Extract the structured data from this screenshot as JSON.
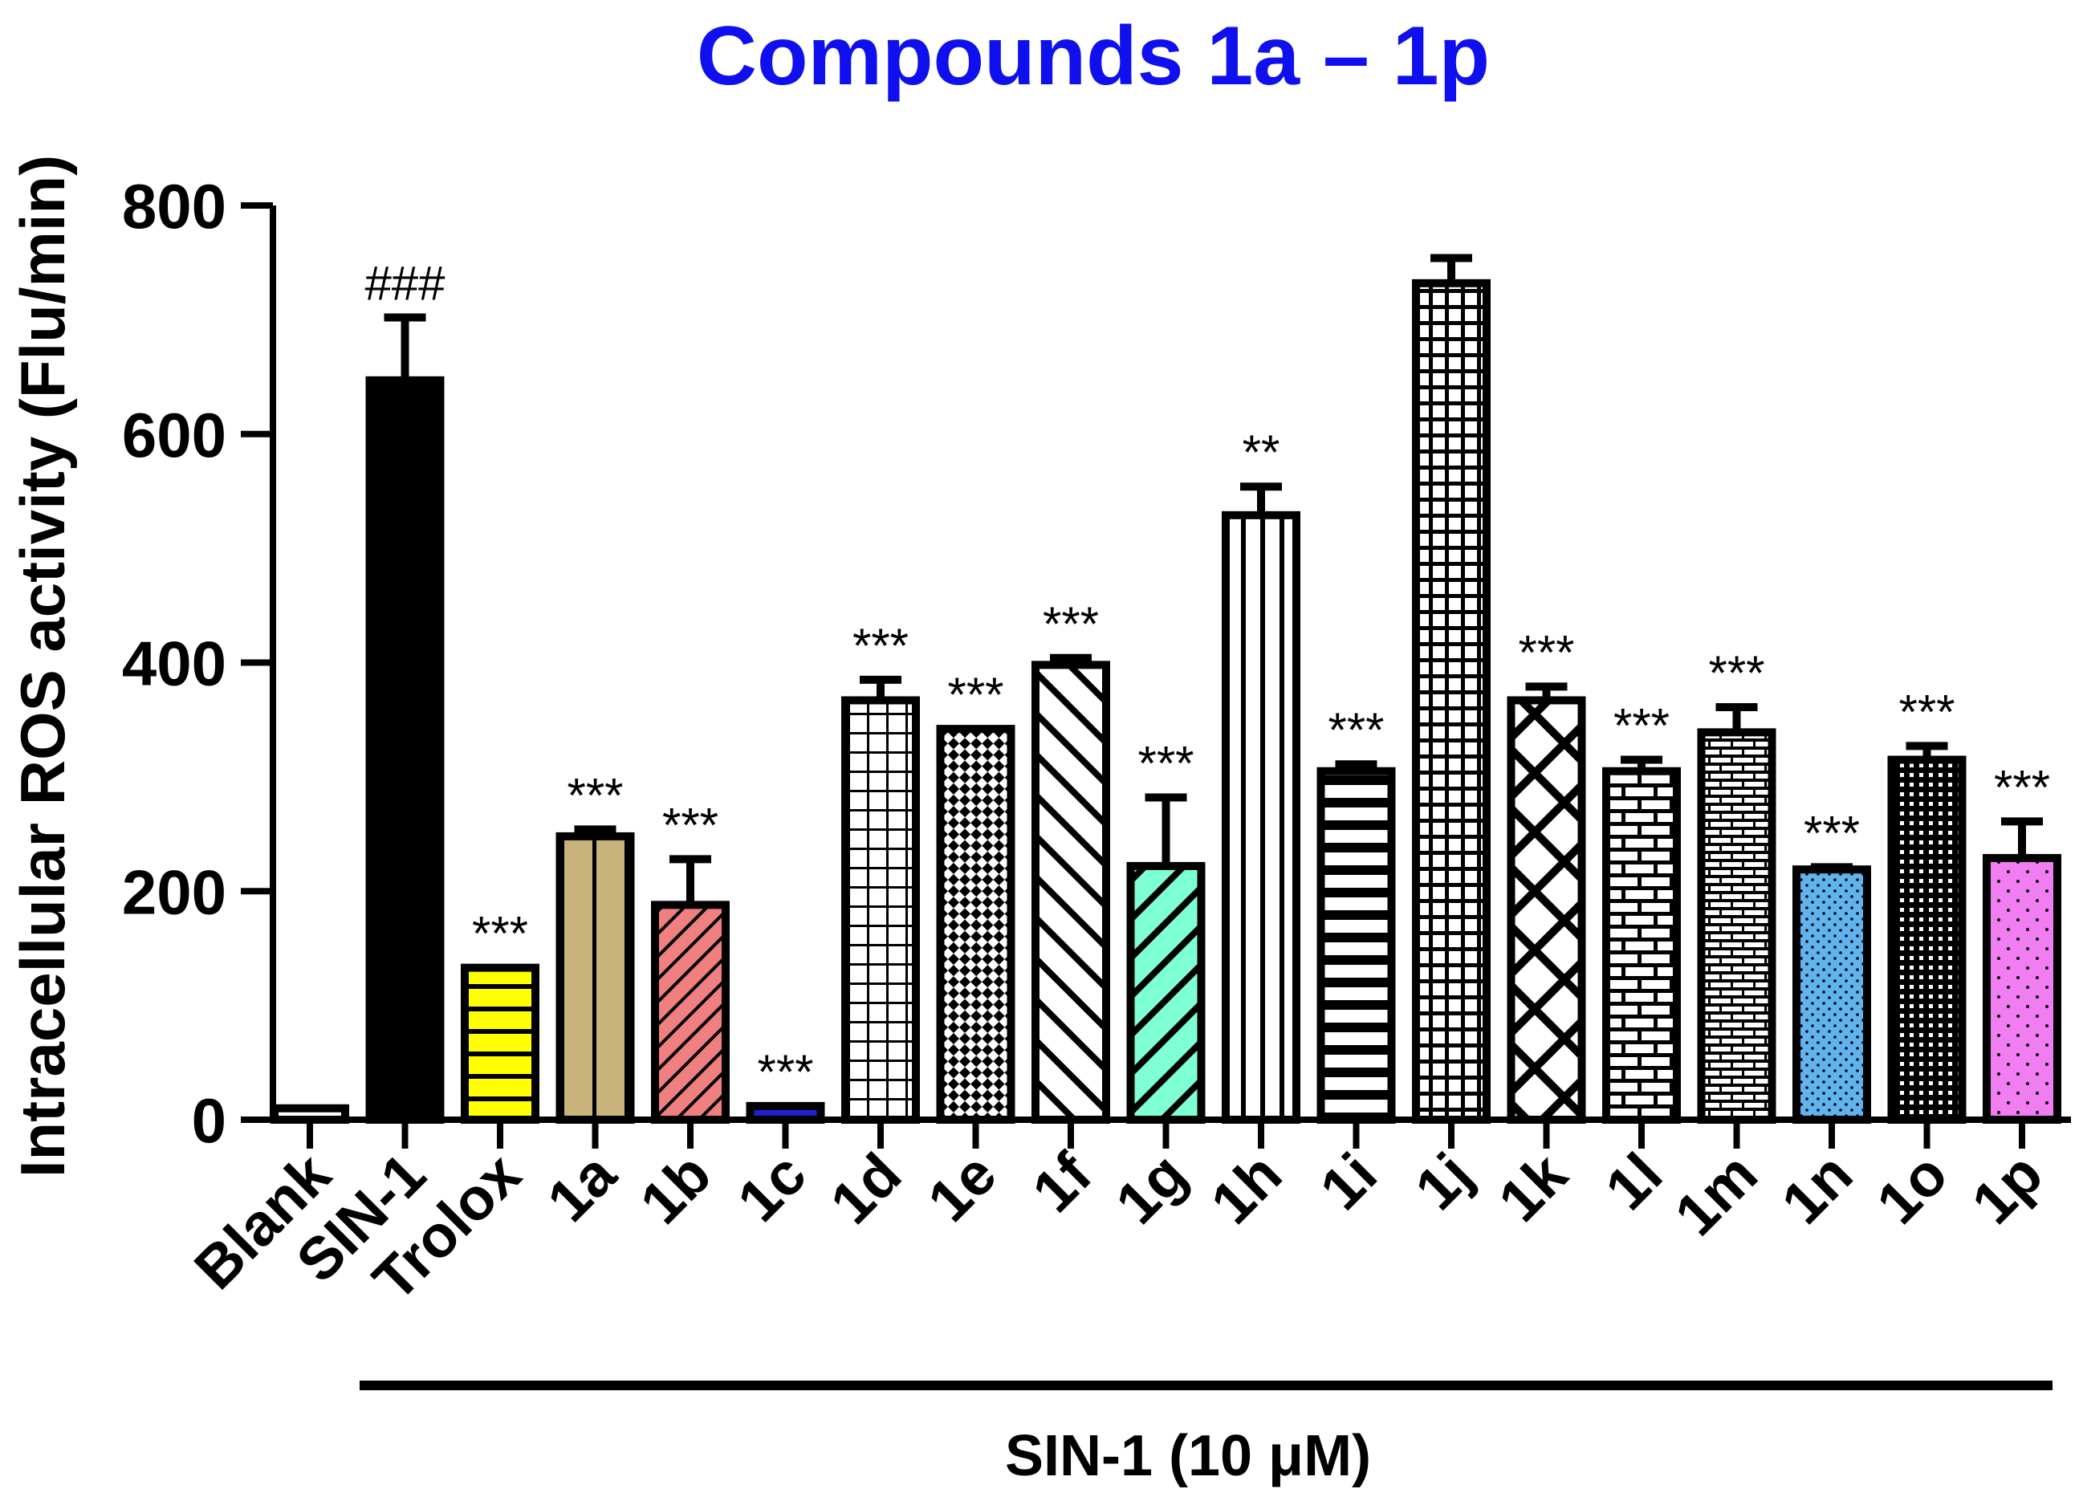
{
  "chart_data": {
    "type": "bar",
    "title": "Compounds 1a – 1p",
    "xlabel": "",
    "ylabel": "Intracellular ROS activity (Flu/min)",
    "ylim": [
      0,
      800
    ],
    "yticks": [
      0,
      200,
      400,
      600,
      800
    ],
    "categories": [
      "Blank",
      "SIN-1",
      "Trolox",
      "1a",
      "1b",
      "1c",
      "1d",
      "1e",
      "1f",
      "1g",
      "1h",
      "1i",
      "1j",
      "1k",
      "1l",
      "1m",
      "1n",
      "1o",
      "1p"
    ],
    "values": [
      10,
      647,
      133,
      248,
      188,
      12,
      367,
      342,
      398,
      222,
      529,
      305,
      732,
      367,
      305,
      339,
      219,
      315,
      229
    ],
    "errors": [
      0,
      55,
      0,
      6,
      40,
      0,
      18,
      0,
      6,
      60,
      25,
      6,
      22,
      12,
      10,
      22,
      2,
      12,
      32
    ],
    "significance": [
      "",
      "###",
      "***",
      "***",
      "***",
      "***",
      "***",
      "***",
      "***",
      "***",
      "**",
      "***",
      "",
      "***",
      "***",
      "***",
      "***",
      "***",
      "***"
    ],
    "bar_fills": [
      "white",
      "black",
      "yellow-stripes",
      "tan-vertical",
      "pink-diagonal",
      "blue",
      "grid",
      "diamond-check",
      "backdiagonal",
      "teal-diagonal",
      "vertical",
      "horizontal",
      "grid-dense",
      "crosshatch",
      "brick-large",
      "brick-small",
      "blue-dots",
      "dots-dense",
      "magenta-dots"
    ],
    "bracket_label": "SIN-1 (10 μM)",
    "bracket_spans": [
      "SIN-1",
      "1p"
    ],
    "colors": {
      "title": "#1010ee",
      "axis": "#000000",
      "yellow": "#ffff00",
      "tan": "#c8b47a",
      "pink": "#f08080",
      "blue": "#2020d0",
      "teal": "#7fffd4",
      "sky": "#5fb4f0",
      "magenta": "#f07ef0"
    }
  }
}
